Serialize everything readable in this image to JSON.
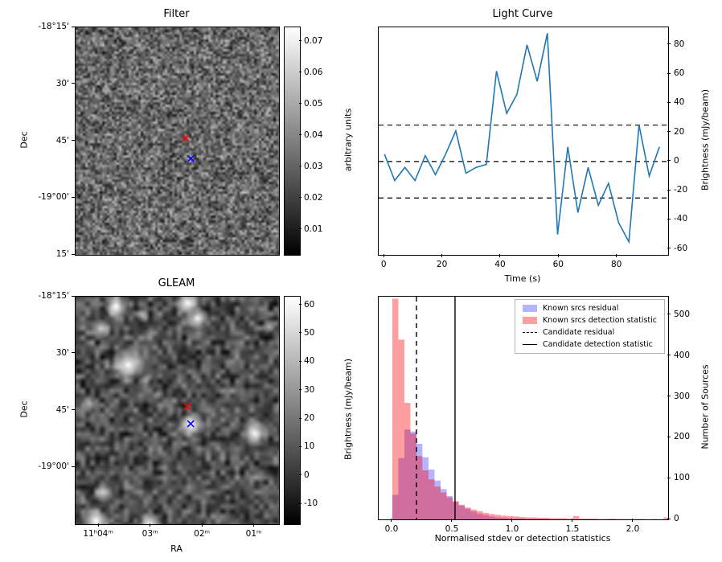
{
  "chart_data": [
    {
      "type": "heatmap",
      "title": "Filter",
      "xlabel": "",
      "ylabel": "Dec",
      "yticks": {
        "labels": [
          "-18°15'",
          "30'",
          "45'",
          "-19°00'",
          "15'"
        ],
        "fracs": [
          0.0,
          0.25,
          0.5,
          0.75,
          1.0
        ]
      },
      "colorbar": {
        "label": "arbitrary units",
        "vmin": 0.002,
        "vmax": 0.0745,
        "tick_values": [
          0.07,
          0.06,
          0.05,
          0.04,
          0.03,
          0.02,
          0.01
        ],
        "tick_labels": [
          "0.07",
          "0.06",
          "0.05",
          "0.04",
          "0.03",
          "0.02",
          "0.01"
        ]
      },
      "markers": [
        {
          "name": "candidate-x-marker",
          "color": "#ff0000",
          "fx": 0.545,
          "fy": 0.49
        },
        {
          "name": "reference-x-marker",
          "color": "#0000ff",
          "fx": 0.57,
          "fy": 0.58
        }
      ]
    },
    {
      "type": "line",
      "title": "Light Curve",
      "xlabel": "Time (s)",
      "ylabel": "Brightness (mJy/beam)",
      "line_color": "#1f77b4",
      "x": [
        0,
        3.5,
        7,
        10.5,
        14,
        17.5,
        21,
        24.5,
        28,
        31.5,
        35,
        38.5,
        42,
        45.5,
        49,
        52.5,
        56,
        59.5,
        63,
        66.5,
        70,
        73.5,
        77,
        80.5,
        84,
        87.5,
        91,
        94.5
      ],
      "y": [
        5,
        -13,
        -4,
        -13,
        4,
        -9,
        5,
        21,
        -8,
        -4,
        -2,
        62,
        33,
        46,
        80,
        55,
        88,
        -50,
        10,
        -35,
        -4,
        -30,
        -15,
        -42,
        -55,
        25,
        -10,
        10
      ],
      "hlines": [
        25,
        0,
        -25
      ],
      "hline_style": "dashed",
      "xlim": [
        -2,
        97.5
      ],
      "ylim": [
        -64,
        92
      ],
      "xticks": {
        "values": [
          0,
          20,
          40,
          60,
          80
        ],
        "labels": [
          "0",
          "20",
          "40",
          "60",
          "80"
        ]
      },
      "yticks": {
        "values": [
          80,
          60,
          40,
          20,
          0,
          -20,
          -40,
          -60
        ],
        "labels": [
          "80",
          "60",
          "40",
          "20",
          "0",
          "-20",
          "-40",
          "-60"
        ]
      }
    },
    {
      "type": "heatmap",
      "title": "GLEAM",
      "xlabel": "RA",
      "ylabel": "Dec",
      "xticks": {
        "labels": [
          "11ʰ04ᵐ",
          "03ᵐ",
          "02ᵐ",
          "01ᵐ"
        ],
        "fracs": [
          0.115,
          0.37,
          0.625,
          0.88
        ]
      },
      "yticks": {
        "labels": [
          "-18°15'",
          "30'",
          "45'",
          "-19°00'"
        ],
        "fracs": [
          0.0,
          0.25,
          0.5,
          0.75
        ]
      },
      "colorbar": {
        "label": "Brightness (mJy/beam)",
        "vmin": -17,
        "vmax": 63,
        "tick_values": [
          60,
          50,
          40,
          30,
          20,
          10,
          0,
          -10
        ],
        "tick_labels": [
          "60",
          "50",
          "40",
          "30",
          "20",
          "10",
          "0",
          "-10"
        ]
      },
      "sources": [
        [
          0.198,
          0.042,
          7,
          1.0
        ],
        [
          0.553,
          0.028,
          8,
          1.0
        ],
        [
          0.6,
          0.095,
          7,
          0.95
        ],
        [
          0.126,
          0.14,
          6,
          0.8
        ],
        [
          0.33,
          0.085,
          4,
          0.5
        ],
        [
          0.258,
          0.3,
          10,
          1.0
        ],
        [
          0.07,
          0.47,
          5,
          0.55
        ],
        [
          0.35,
          0.36,
          3.5,
          0.45
        ],
        [
          0.41,
          0.43,
          3.5,
          0.45
        ],
        [
          0.47,
          0.5,
          3.5,
          0.4
        ],
        [
          0.57,
          0.562,
          8,
          1.0
        ],
        [
          0.88,
          0.6,
          8,
          0.95
        ],
        [
          0.134,
          0.86,
          6,
          0.7
        ],
        [
          0.1,
          0.985,
          8,
          1.0
        ],
        [
          0.364,
          1.0,
          7,
          0.9
        ],
        [
          0.95,
          0.13,
          4,
          0.45
        ]
      ],
      "markers": [
        {
          "name": "candidate-x-marker",
          "color": "#ff0000",
          "fx": 0.553,
          "fy": 0.487
        },
        {
          "name": "reference-x-marker",
          "color": "#0000ff",
          "fx": 0.57,
          "fy": 0.562
        }
      ]
    },
    {
      "type": "bar",
      "title": "",
      "xlabel": "Normalised stdev or detection statistics",
      "ylabel": "Number of Sources",
      "bin_start": 0.0,
      "bin_width": 0.05,
      "series": [
        {
          "name": "Known srcs residual",
          "color": "rgba(40,40,255,0.35)",
          "counts": [
            60,
            150,
            220,
            215,
            185,
            152,
            122,
            95,
            74,
            57,
            44,
            34,
            26,
            19,
            14,
            10,
            7,
            5,
            4,
            3,
            2,
            2,
            1,
            1,
            1,
            1,
            0,
            0,
            0,
            0,
            0,
            0,
            0,
            0,
            0,
            0,
            0,
            0,
            0,
            0,
            0,
            0,
            0,
            0,
            0,
            0
          ]
        },
        {
          "name": "Known srcs detection statistic",
          "color": "rgba(255,0,0,0.38)",
          "counts": [
            540,
            440,
            285,
            210,
            155,
            120,
            98,
            80,
            66,
            54,
            44,
            36,
            29,
            24,
            20,
            16,
            13,
            11,
            9,
            8,
            7,
            6,
            5,
            5,
            4,
            4,
            3,
            3,
            3,
            2,
            8,
            2,
            2,
            2,
            1,
            1,
            2,
            1,
            1,
            1,
            1,
            1,
            0,
            1,
            0,
            5
          ]
        }
      ],
      "vlines": [
        {
          "name": "Candidate residual",
          "x": 0.2,
          "style": "dashed"
        },
        {
          "name": "Candidate detection statistic",
          "x": 0.52,
          "style": "solid"
        }
      ],
      "xlim": [
        -0.113,
        2.287
      ],
      "ylim": [
        0,
        545
      ],
      "xticks": {
        "values": [
          0,
          0.5,
          1.0,
          1.5,
          2.0
        ],
        "labels": [
          "0.0",
          "0.5",
          "1.0",
          "1.5",
          "2.0"
        ]
      },
      "yticks": {
        "values": [
          0,
          100,
          200,
          300,
          400,
          500
        ],
        "labels": [
          "0",
          "100",
          "200",
          "300",
          "400",
          "500"
        ]
      }
    }
  ]
}
